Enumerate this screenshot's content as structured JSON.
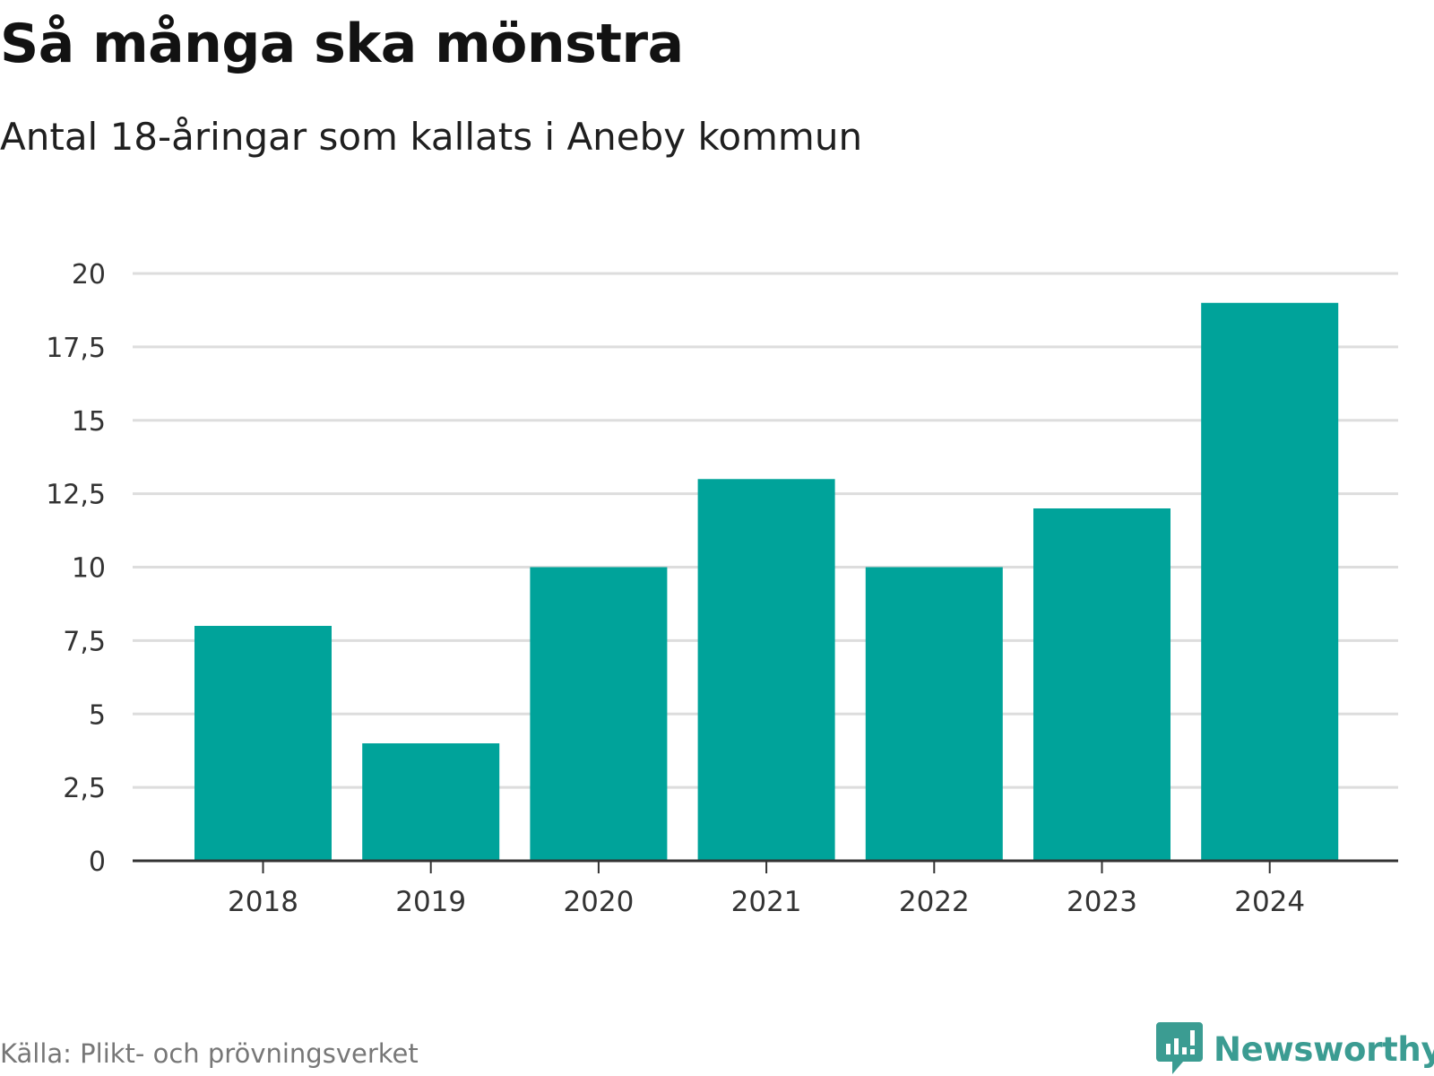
{
  "chart_data": {
    "type": "bar",
    "title": "Så många ska mönstra",
    "subtitle": "Antal 18-åringar som kallats i Aneby kommun",
    "categories": [
      "2018",
      "2019",
      "2020",
      "2021",
      "2022",
      "2023",
      "2024"
    ],
    "values": [
      8,
      4,
      10,
      13,
      10,
      12,
      19
    ],
    "ylim": [
      0,
      20
    ],
    "yticks": [
      0,
      2.5,
      5,
      7.5,
      10,
      12.5,
      15,
      17.5,
      20
    ],
    "ytick_labels": [
      "0",
      "2,5",
      "5",
      "7,5",
      "10",
      "12,5",
      "15",
      "17,5",
      "20"
    ],
    "grid": true,
    "bar_color": "#00a39a",
    "source": "Källa: Plikt- och prövningsverket"
  },
  "brand": {
    "name": "Newsworthy",
    "logo_icon": "newsworthy-speech-bubble-icon",
    "color": "#3b9c92"
  }
}
